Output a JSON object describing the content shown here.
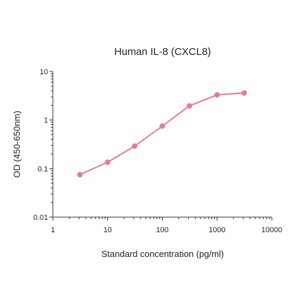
{
  "chart_data": {
    "type": "line",
    "title": "Human IL-8 (CXCL8)",
    "xlabel": "Standard concentration (pg/ml)",
    "ylabel": "OD (450-650nm)",
    "x_scale": "log",
    "y_scale": "log",
    "xlim": [
      1,
      10000
    ],
    "ylim": [
      0.01,
      10
    ],
    "x_ticks": [
      1,
      10,
      100,
      1000,
      10000
    ],
    "x_tick_labels": [
      "1",
      "10",
      "100",
      "1000",
      "10000"
    ],
    "y_ticks": [
      0.01,
      0.1,
      1,
      10
    ],
    "y_tick_labels": [
      "0.01",
      "0.1",
      "1",
      "10"
    ],
    "grid": false,
    "series": [
      {
        "x": [
          3.125,
          10,
          31.25,
          100,
          312.5,
          1000,
          3125
        ],
        "y": [
          0.075,
          0.135,
          0.29,
          0.75,
          1.95,
          3.3,
          3.6
        ],
        "color": "#e87a8e"
      }
    ]
  }
}
